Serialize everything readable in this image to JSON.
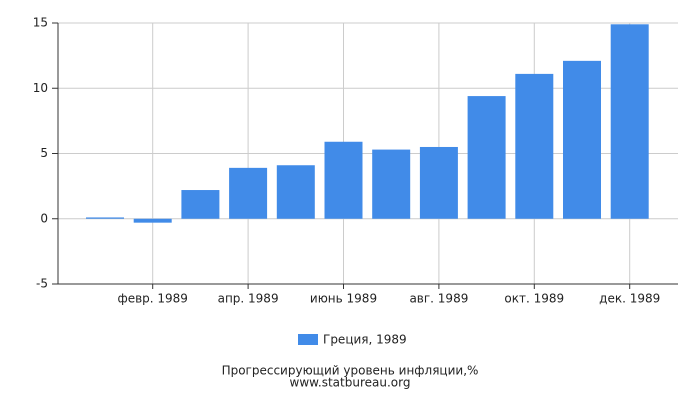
{
  "chart_data": {
    "type": "bar",
    "categories": [
      null,
      "февр. 1989",
      null,
      "апр. 1989",
      null,
      "июнь 1989",
      null,
      "авг. 1989",
      null,
      "окт. 1989",
      null,
      "дек. 1989"
    ],
    "series": [
      {
        "name": "Греция, 1989",
        "color": "#418be8",
        "values": [
          0.1,
          -0.3,
          2.2,
          3.9,
          4.1,
          5.9,
          5.3,
          5.5,
          9.4,
          11.1,
          12.1,
          14.9
        ]
      }
    ],
    "ylim": [
      -5,
      15
    ],
    "yticks": [
      -5,
      0,
      5,
      10,
      15
    ],
    "grid": true,
    "title": "Прогрессирующий уровень инфляции,%",
    "source": "www.statbureau.org"
  }
}
